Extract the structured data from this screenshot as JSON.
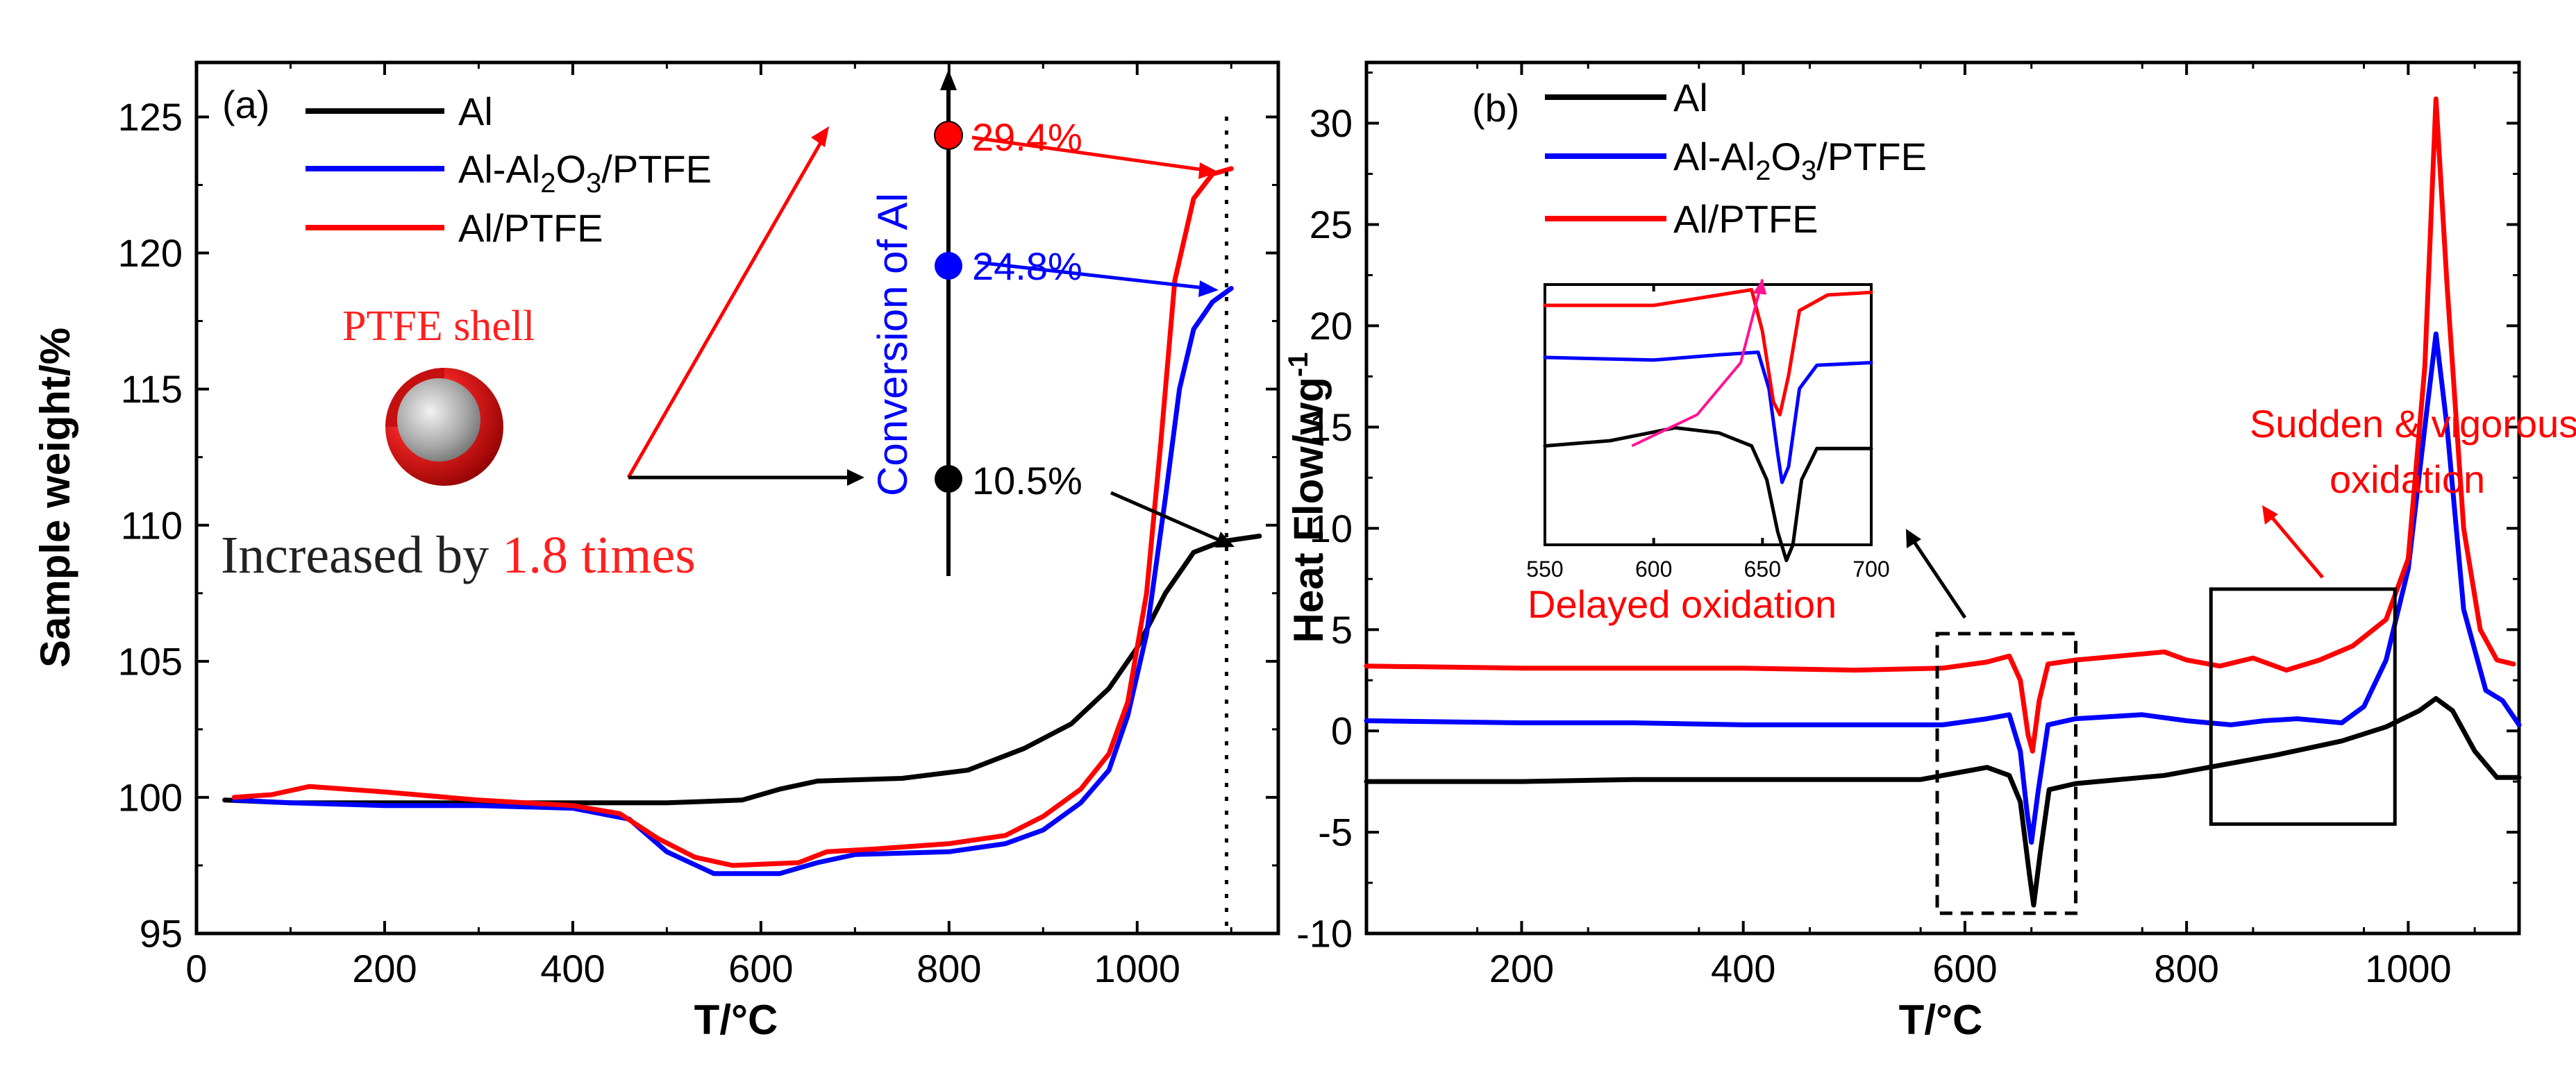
{
  "chart_data": [
    {
      "panel": "(a)",
      "type": "line",
      "xlabel": "T/°C",
      "ylabel": "Sample weight/%",
      "xlim": [
        0,
        1150
      ],
      "ylim": [
        95,
        127
      ],
      "xticks": [
        0,
        200,
        400,
        600,
        800,
        1000
      ],
      "yticks": [
        95,
        100,
        105,
        110,
        115,
        120,
        125
      ],
      "legend": [
        "Al",
        "Al-Al2O3/PTFE",
        "Al/PTFE"
      ],
      "series": [
        {
          "name": "Al",
          "color": "#000000",
          "points": [
            [
              30,
              99.9
            ],
            [
              100,
              99.8
            ],
            [
              200,
              99.8
            ],
            [
              300,
              99.8
            ],
            [
              400,
              99.8
            ],
            [
              500,
              99.8
            ],
            [
              580,
              99.9
            ],
            [
              620,
              100.3
            ],
            [
              660,
              100.6
            ],
            [
              750,
              100.7
            ],
            [
              820,
              101.0
            ],
            [
              880,
              101.8
            ],
            [
              930,
              102.7
            ],
            [
              970,
              104.0
            ],
            [
              1000,
              105.5
            ],
            [
              1030,
              107.5
            ],
            [
              1060,
              109.0
            ],
            [
              1090,
              109.4
            ],
            [
              1130,
              109.6
            ]
          ]
        },
        {
          "name": "Al-Al2O3/PTFE",
          "color": "#0000ff",
          "points": [
            [
              40,
              99.9
            ],
            [
              100,
              99.8
            ],
            [
              200,
              99.7
            ],
            [
              300,
              99.7
            ],
            [
              400,
              99.6
            ],
            [
              460,
              99.2
            ],
            [
              500,
              98.0
            ],
            [
              550,
              97.2
            ],
            [
              620,
              97.2
            ],
            [
              660,
              97.6
            ],
            [
              700,
              97.9
            ],
            [
              800,
              98.0
            ],
            [
              860,
              98.3
            ],
            [
              900,
              98.8
            ],
            [
              940,
              99.8
            ],
            [
              970,
              101.0
            ],
            [
              990,
              103.0
            ],
            [
              1010,
              106.0
            ],
            [
              1030,
              111.0
            ],
            [
              1045,
              115.0
            ],
            [
              1060,
              117.2
            ],
            [
              1080,
              118.2
            ],
            [
              1100,
              118.7
            ]
          ]
        },
        {
          "name": "Al/PTFE",
          "color": "#ff0000",
          "points": [
            [
              40,
              100.0
            ],
            [
              80,
              100.1
            ],
            [
              120,
              100.4
            ],
            [
              200,
              100.2
            ],
            [
              300,
              99.9
            ],
            [
              400,
              99.7
            ],
            [
              450,
              99.4
            ],
            [
              490,
              98.5
            ],
            [
              530,
              97.8
            ],
            [
              570,
              97.5
            ],
            [
              640,
              97.6
            ],
            [
              670,
              98.0
            ],
            [
              720,
              98.1
            ],
            [
              800,
              98.3
            ],
            [
              860,
              98.6
            ],
            [
              900,
              99.3
            ],
            [
              940,
              100.3
            ],
            [
              970,
              101.6
            ],
            [
              990,
              103.5
            ],
            [
              1010,
              107.5
            ],
            [
              1025,
              113.0
            ],
            [
              1040,
              119.0
            ],
            [
              1060,
              122.0
            ],
            [
              1080,
              122.9
            ],
            [
              1100,
              123.1
            ]
          ]
        }
      ],
      "annotations": {
        "conversion_axis_label": "Conversion of Al",
        "conversion_points": [
          {
            "label": "29.4%",
            "color": "#ff0000"
          },
          {
            "label": "24.8%",
            "color": "#0000ff"
          },
          {
            "label": "10.5%",
            "color": "#000000"
          }
        ],
        "shell_label": "PTFE shell",
        "increase_prefix": "Increased by ",
        "increase_value": "1.8 times",
        "dotted_line_at_x": 1095
      }
    },
    {
      "panel": "(b)",
      "type": "line",
      "xlabel": "T/°C",
      "ylabel": "Heat Flow/wg",
      "ylabel_sup": "-1",
      "xlim": [
        60,
        1100
      ],
      "ylim": [
        -10,
        33
      ],
      "xticks": [
        200,
        400,
        600,
        800,
        1000
      ],
      "yticks": [
        -10,
        -5,
        0,
        5,
        10,
        15,
        20,
        25,
        30
      ],
      "legend": [
        "Al",
        "Al-Al2O3/PTFE",
        "Al/PTFE"
      ],
      "series": [
        {
          "name": "Al",
          "color": "#000000",
          "points": [
            [
              60,
              -2.5
            ],
            [
              200,
              -2.5
            ],
            [
              300,
              -2.4
            ],
            [
              400,
              -2.4
            ],
            [
              500,
              -2.4
            ],
            [
              560,
              -2.4
            ],
            [
              600,
              -2.0
            ],
            [
              620,
              -1.8
            ],
            [
              640,
              -2.2
            ],
            [
              650,
              -3.5
            ],
            [
              658,
              -7.0
            ],
            [
              662,
              -8.6
            ],
            [
              668,
              -6.0
            ],
            [
              676,
              -2.9
            ],
            [
              700,
              -2.6
            ],
            [
              780,
              -2.2
            ],
            [
              820,
              -1.8
            ],
            [
              880,
              -1.2
            ],
            [
              940,
              -0.5
            ],
            [
              980,
              0.2
            ],
            [
              1010,
              1.0
            ],
            [
              1025,
              1.6
            ],
            [
              1040,
              1.0
            ],
            [
              1060,
              -1.0
            ],
            [
              1080,
              -2.3
            ],
            [
              1100,
              -2.3
            ]
          ]
        },
        {
          "name": "Al-Al2O3/PTFE",
          "color": "#0000ff",
          "points": [
            [
              60,
              0.5
            ],
            [
              200,
              0.4
            ],
            [
              300,
              0.4
            ],
            [
              400,
              0.3
            ],
            [
              500,
              0.3
            ],
            [
              580,
              0.3
            ],
            [
              620,
              0.6
            ],
            [
              640,
              0.8
            ],
            [
              650,
              -1.0
            ],
            [
              656,
              -4.0
            ],
            [
              660,
              -5.5
            ],
            [
              666,
              -3.0
            ],
            [
              675,
              0.3
            ],
            [
              700,
              0.6
            ],
            [
              760,
              0.8
            ],
            [
              800,
              0.5
            ],
            [
              840,
              0.3
            ],
            [
              870,
              0.5
            ],
            [
              900,
              0.6
            ],
            [
              940,
              0.4
            ],
            [
              960,
              1.2
            ],
            [
              980,
              3.5
            ],
            [
              1000,
              8.0
            ],
            [
              1015,
              15.0
            ],
            [
              1025,
              19.6
            ],
            [
              1035,
              15.0
            ],
            [
              1050,
              6.0
            ],
            [
              1070,
              2.0
            ],
            [
              1085,
              1.5
            ],
            [
              1100,
              0.3
            ]
          ]
        },
        {
          "name": "Al/PTFE",
          "color": "#ff0000",
          "points": [
            [
              60,
              3.2
            ],
            [
              200,
              3.1
            ],
            [
              300,
              3.1
            ],
            [
              400,
              3.1
            ],
            [
              500,
              3.0
            ],
            [
              580,
              3.1
            ],
            [
              620,
              3.4
            ],
            [
              640,
              3.7
            ],
            [
              650,
              2.5
            ],
            [
              657,
              -0.2
            ],
            [
              661,
              -1.0
            ],
            [
              667,
              1.5
            ],
            [
              675,
              3.3
            ],
            [
              700,
              3.5
            ],
            [
              740,
              3.7
            ],
            [
              780,
              3.9
            ],
            [
              800,
              3.5
            ],
            [
              830,
              3.2
            ],
            [
              860,
              3.6
            ],
            [
              890,
              3.0
            ],
            [
              920,
              3.5
            ],
            [
              950,
              4.2
            ],
            [
              980,
              5.5
            ],
            [
              1000,
              8.5
            ],
            [
              1015,
              18.0
            ],
            [
              1025,
              31.2
            ],
            [
              1035,
              22.0
            ],
            [
              1050,
              10.0
            ],
            [
              1065,
              5.0
            ],
            [
              1080,
              3.5
            ],
            [
              1095,
              3.3
            ]
          ]
        }
      ],
      "inset": {
        "xlim": [
          550,
          700
        ],
        "ylim": [
          0,
          10
        ],
        "xticks": [
          550,
          600,
          650,
          700
        ],
        "series": [
          {
            "name": "Al",
            "color": "#000000",
            "points": [
              [
                550,
                3.8
              ],
              [
                580,
                4.0
              ],
              [
                610,
                4.5
              ],
              [
                630,
                4.3
              ],
              [
                645,
                3.8
              ],
              [
                652,
                2.5
              ],
              [
                657,
                0.5
              ],
              [
                661,
                -0.6
              ],
              [
                664,
                0.0
              ],
              [
                668,
                2.5
              ],
              [
                675,
                3.7
              ],
              [
                700,
                3.7
              ]
            ]
          },
          {
            "name": "Al-Al2O3/PTFE",
            "color": "#0000ff",
            "points": [
              [
                550,
                7.2
              ],
              [
                600,
                7.1
              ],
              [
                630,
                7.3
              ],
              [
                648,
                7.4
              ],
              [
                653,
                6.0
              ],
              [
                657,
                3.5
              ],
              [
                659,
                2.4
              ],
              [
                662,
                3.0
              ],
              [
                667,
                6.0
              ],
              [
                675,
                6.9
              ],
              [
                700,
                7.0
              ]
            ]
          },
          {
            "name": "Al/PTFE",
            "color": "#ff0000",
            "points": [
              [
                550,
                9.2
              ],
              [
                600,
                9.2
              ],
              [
                630,
                9.6
              ],
              [
                645,
                9.8
              ],
              [
                650,
                8.2
              ],
              [
                655,
                5.5
              ],
              [
                658,
                5.0
              ],
              [
                662,
                6.5
              ],
              [
                667,
                9.0
              ],
              [
                680,
                9.6
              ],
              [
                700,
                9.7
              ]
            ]
          }
        ],
        "onset_line": {
          "color": "#ff1493",
          "points": [
            [
              590,
              3.8
            ],
            [
              620,
              5.0
            ],
            [
              640,
              7.0
            ],
            [
              650,
              10.2
            ]
          ]
        }
      },
      "annotations": {
        "inset_caption": "Delayed oxidation",
        "peak_caption_line1": "Sudden & vigorous",
        "peak_caption_line2": "oxidation",
        "dashed_box_xrange": [
          575,
          700
        ],
        "dashed_box_yrange": [
          -9,
          4.8
        ],
        "solid_box_xrange": [
          822,
          988
        ],
        "solid_box_yrange": [
          -4.6,
          7.0
        ]
      }
    }
  ]
}
